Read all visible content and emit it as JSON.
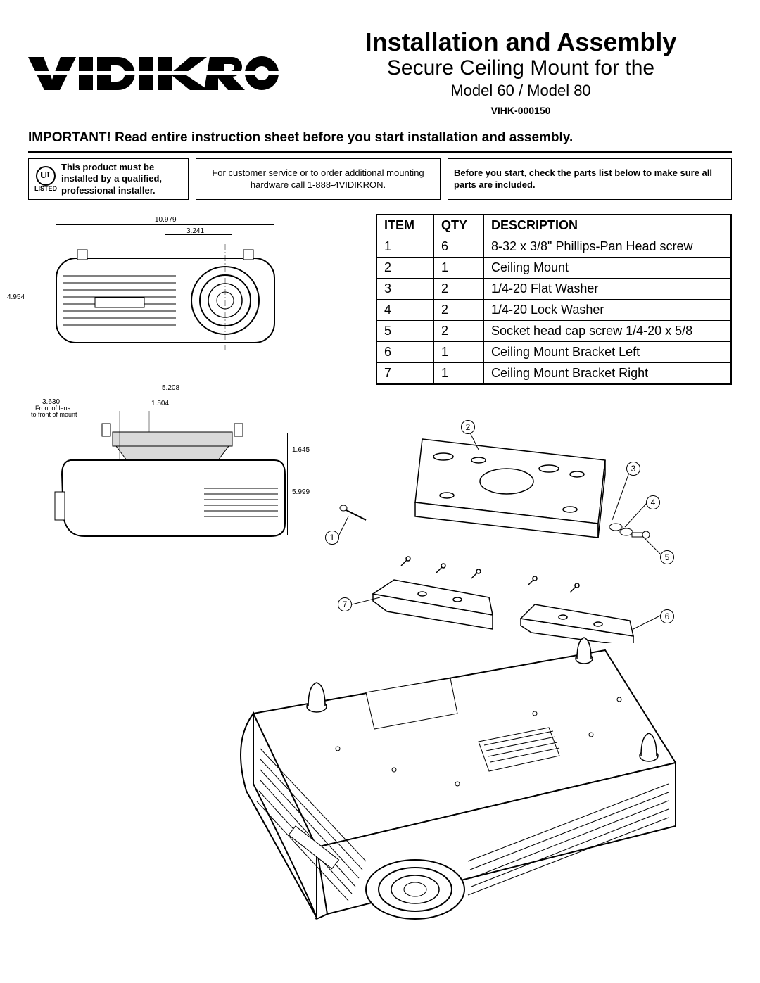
{
  "logo_text": "VIDIKRON",
  "title": "Installation and Assembly",
  "subtitle": "Secure Ceiling Mount for the",
  "model_line": "Model 60 / Model 80",
  "part_number": "VIHK-000150",
  "important_label": "IMPORTANT!",
  "important_text": "Read entire instruction sheet before you start installation and assembly.",
  "info_boxes": {
    "ul_listed": "LISTED",
    "box1": "This product must be installed by a qualified, professional installer.",
    "box2": "For customer service or to order additional mounting hardware call 1-888-4VIDIKRON.",
    "box3": "Before you start, check the parts list below to make sure all parts are included."
  },
  "parts_table": {
    "columns": [
      "ITEM",
      "QTY",
      "DESCRIPTION"
    ],
    "rows": [
      [
        "1",
        "6",
        "8-32 x 3/8\" Phillips-Pan Head screw"
      ],
      [
        "2",
        "1",
        "Ceiling Mount"
      ],
      [
        "3",
        "2",
        "1/4-20 Flat Washer"
      ],
      [
        "4",
        "2",
        "1/4-20 Lock Washer"
      ],
      [
        "5",
        "2",
        "Socket head cap screw 1/4-20 x 5/8"
      ],
      [
        "6",
        "1",
        "Ceiling Mount Bracket Left"
      ],
      [
        "7",
        "1",
        "Ceiling Mount Bracket Right"
      ]
    ]
  },
  "dimensions": {
    "front_width": "10.979",
    "front_lens_offset": "3.241",
    "front_height": "4.954",
    "side_top_width": "5.208",
    "side_lens_front": "3.630",
    "side_lens_note1": "Front of lens",
    "side_lens_note2": "to front of mount",
    "side_inner": "1.504",
    "side_bracket_h": "1.645",
    "side_total_h": "5.999"
  },
  "callouts": [
    "1",
    "2",
    "3",
    "4",
    "5",
    "6",
    "7"
  ],
  "colors": {
    "line": "#000000",
    "bg": "#ffffff",
    "shade": "#d9d9d9"
  }
}
